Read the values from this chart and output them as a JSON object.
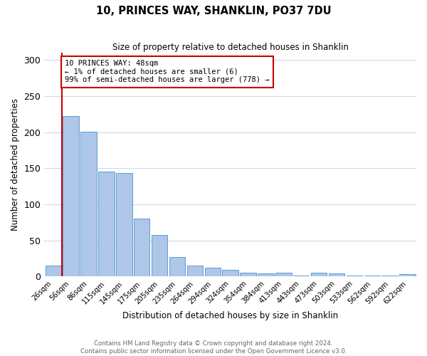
{
  "title": "10, PRINCES WAY, SHANKLIN, PO37 7DU",
  "subtitle": "Size of property relative to detached houses in Shanklin",
  "xlabel": "Distribution of detached houses by size in Shanklin",
  "ylabel": "Number of detached properties",
  "categories": [
    "26sqm",
    "56sqm",
    "86sqm",
    "115sqm",
    "145sqm",
    "175sqm",
    "205sqm",
    "235sqm",
    "264sqm",
    "294sqm",
    "324sqm",
    "354sqm",
    "384sqm",
    "413sqm",
    "443sqm",
    "473sqm",
    "503sqm",
    "533sqm",
    "562sqm",
    "592sqm",
    "622sqm"
  ],
  "values": [
    15,
    222,
    201,
    145,
    143,
    80,
    57,
    27,
    15,
    12,
    9,
    5,
    4,
    5,
    1,
    5,
    4,
    1,
    1,
    1,
    3
  ],
  "bar_color": "#aec6e8",
  "bar_edge_color": "#5a9fd4",
  "annotation_box_color": "#ffffff",
  "annotation_box_edge_color": "#cc0000",
  "property_line_color": "#cc0000",
  "property_line_index": 0,
  "annotation_text_line1": "10 PRINCES WAY: 48sqm",
  "annotation_text_line2": "← 1% of detached houses are smaller (6)",
  "annotation_text_line3": "99% of semi-detached houses are larger (778) →",
  "footer_line1": "Contains HM Land Registry data © Crown copyright and database right 2024.",
  "footer_line2": "Contains public sector information licensed under the Open Government Licence v3.0.",
  "ylim": [
    0,
    310
  ],
  "yticks": [
    0,
    50,
    100,
    150,
    200,
    250,
    300
  ],
  "background_color": "#ffffff",
  "grid_color": "#d0d8e8"
}
